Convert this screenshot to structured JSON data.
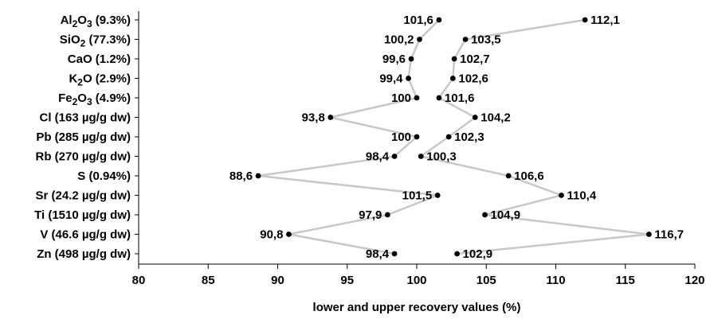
{
  "chart_data": {
    "type": "scatter",
    "title": "",
    "xlabel": "lower and upper recovery values (%)",
    "ylabel": "",
    "xlim": [
      80,
      120
    ],
    "x_ticks": [
      "80",
      "85",
      "90",
      "95",
      "100",
      "105",
      "110",
      "115",
      "120"
    ],
    "grid": false,
    "legend": "none",
    "colors": {
      "marker": "#000000",
      "line": "#c8c8c8",
      "axis": "#000000"
    },
    "categories": [
      {
        "base": "Al",
        "sub1": "2",
        "mid": "O",
        "sub2": "3",
        "rest": " (9.3%)"
      },
      {
        "base": "SiO",
        "sub1": "2",
        "mid": "",
        "sub2": "",
        "rest": " (77.3%)"
      },
      {
        "base": "CaO",
        "sub1": "",
        "mid": "",
        "sub2": "",
        "rest": " (1.2%)"
      },
      {
        "base": "K",
        "sub1": "2",
        "mid": "O",
        "sub2": "",
        "rest": " (2.9%)"
      },
      {
        "base": "Fe",
        "sub1": "2",
        "mid": "O",
        "sub2": "3",
        "rest": " (4.9%)"
      },
      {
        "base": "Cl (163 µg/g dw)",
        "sub1": "",
        "mid": "",
        "sub2": "",
        "rest": ""
      },
      {
        "base": "Pb (285 µg/g dw)",
        "sub1": "",
        "mid": "",
        "sub2": "",
        "rest": ""
      },
      {
        "base": "Rb (270 µg/g dw)",
        "sub1": "",
        "mid": "",
        "sub2": "",
        "rest": ""
      },
      {
        "base": "S (0.94%)",
        "sub1": "",
        "mid": "",
        "sub2": "",
        "rest": ""
      },
      {
        "base": "Sr (24.2 µg/g dw)",
        "sub1": "",
        "mid": "",
        "sub2": "",
        "rest": ""
      },
      {
        "base": "Ti (1510 µg/g dw)",
        "sub1": "",
        "mid": "",
        "sub2": "",
        "rest": ""
      },
      {
        "base": "V (46.6 µg/g dw)",
        "sub1": "",
        "mid": "",
        "sub2": "",
        "rest": ""
      },
      {
        "base": "Zn (498 µg/g dw)",
        "sub1": "",
        "mid": "",
        "sub2": "",
        "rest": ""
      }
    ],
    "series": [
      {
        "values": [
          101.6,
          100.2,
          99.6,
          99.4,
          100,
          93.8,
          100,
          98.4,
          88.6,
          101.5,
          97.9,
          90.8,
          98.4
        ],
        "labels": [
          "101,6",
          "100,2",
          "99,6",
          "99,4",
          "100",
          "93,8",
          "100",
          "98,4",
          "88,6",
          "101,5",
          "97,9",
          "90,8",
          "98,4"
        ],
        "label_side": "left"
      },
      {
        "values": [
          112.1,
          103.5,
          102.7,
          102.6,
          101.6,
          104.2,
          102.3,
          100.3,
          106.6,
          110.4,
          104.9,
          116.7,
          102.9
        ],
        "labels": [
          "112,1",
          "103,5",
          "102,7",
          "102,6",
          "101,6",
          "104,2",
          "102,3",
          "100,3",
          "106,6",
          "110,4",
          "104,9",
          "116,7",
          "102,9"
        ],
        "label_side": "right"
      }
    ]
  }
}
